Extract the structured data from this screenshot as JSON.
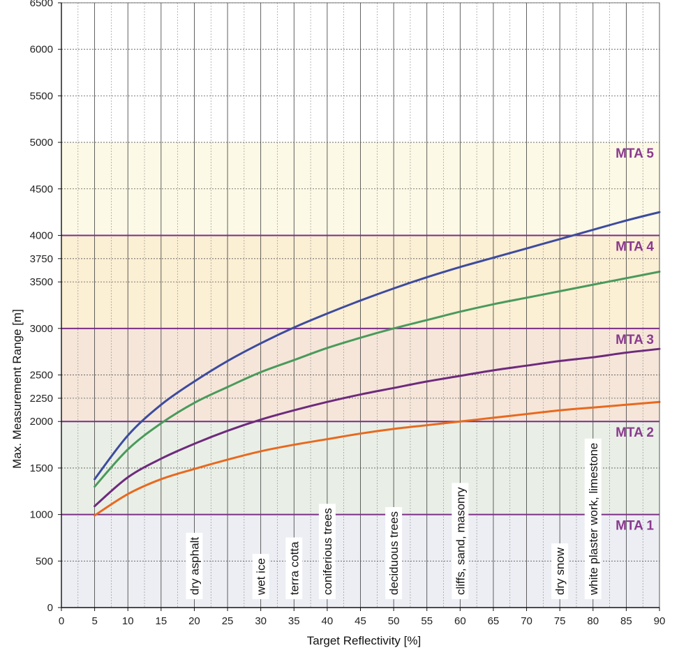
{
  "chart_data": {
    "type": "line",
    "xlabel": "Target Reflectivity [%]",
    "ylabel": "Max. Measurement Range [m]",
    "xlim": [
      0,
      90
    ],
    "ylim": [
      0,
      6500
    ],
    "x_ticks": [
      "0",
      "5",
      "10",
      "15",
      "20",
      "25",
      "30",
      "35",
      "40",
      "45",
      "50",
      "55",
      "60",
      "65",
      "70",
      "75",
      "80",
      "85",
      "90"
    ],
    "y_ticks": [
      "0",
      "500",
      "1000",
      "1500",
      "2000",
      "2250",
      "2500",
      "3000",
      "3500",
      "3750",
      "4000",
      "4500",
      "5000",
      "5500",
      "6000",
      "6500"
    ],
    "grid": true,
    "zones": [
      {
        "label": "MTA 1",
        "from": 0,
        "to": 1000,
        "color": "#eceef4"
      },
      {
        "label": "MTA 2",
        "from": 1000,
        "to": 2000,
        "color": "#e9efe6"
      },
      {
        "label": "MTA 3",
        "from": 2000,
        "to": 3000,
        "color": "#f5e6d9"
      },
      {
        "label": "MTA 4",
        "from": 3000,
        "to": 4000,
        "color": "#fbefd4"
      },
      {
        "label": "MTA 5",
        "from": 4000,
        "to": 5000,
        "color": "#fcf9e6"
      }
    ],
    "zone_label_color": "#8b3a8f",
    "zone_border_color": "#7b2e86",
    "materials": [
      {
        "x": 20,
        "label": "dry asphalt"
      },
      {
        "x": 30,
        "label": "wet ice"
      },
      {
        "x": 35,
        "label": "terra cotta"
      },
      {
        "x": 40,
        "label": "coniferious trees"
      },
      {
        "x": 50,
        "label": "deciduous trees"
      },
      {
        "x": 60,
        "label": "cliffs, sand, masonry"
      },
      {
        "x": 75,
        "label": "dry snow"
      },
      {
        "x": 80,
        "label": "white plaster work, limestone"
      }
    ],
    "series": [
      {
        "color": "#3d4b9e",
        "x": [
          5,
          10,
          15,
          20,
          25,
          30,
          35,
          40,
          45,
          50,
          55,
          60,
          65,
          70,
          75,
          80,
          85,
          90
        ],
        "values": [
          1380,
          1850,
          2180,
          2430,
          2650,
          2840,
          3010,
          3160,
          3300,
          3430,
          3550,
          3660,
          3760,
          3860,
          3960,
          4060,
          4160,
          4250
        ]
      },
      {
        "color": "#4a9a5c",
        "x": [
          5,
          10,
          15,
          20,
          25,
          30,
          35,
          40,
          45,
          50,
          55,
          60,
          65,
          70,
          75,
          80,
          85,
          90
        ],
        "values": [
          1300,
          1700,
          1980,
          2200,
          2370,
          2530,
          2660,
          2790,
          2900,
          3000,
          3090,
          3180,
          3260,
          3330,
          3400,
          3470,
          3540,
          3610
        ]
      },
      {
        "color": "#6e2a7d",
        "x": [
          5,
          10,
          15,
          20,
          25,
          30,
          35,
          40,
          45,
          50,
          55,
          60,
          65,
          70,
          75,
          80,
          85,
          90
        ],
        "values": [
          1090,
          1400,
          1600,
          1760,
          1900,
          2020,
          2120,
          2210,
          2290,
          2360,
          2430,
          2490,
          2550,
          2600,
          2650,
          2690,
          2740,
          2780
        ]
      },
      {
        "color": "#e8691f",
        "x": [
          5,
          10,
          15,
          20,
          25,
          30,
          35,
          40,
          45,
          50,
          55,
          60,
          65,
          70,
          75,
          80,
          85,
          90
        ],
        "values": [
          990,
          1220,
          1380,
          1490,
          1590,
          1680,
          1750,
          1810,
          1870,
          1920,
          1960,
          2000,
          2040,
          2080,
          2120,
          2150,
          2180,
          2210
        ]
      }
    ]
  }
}
